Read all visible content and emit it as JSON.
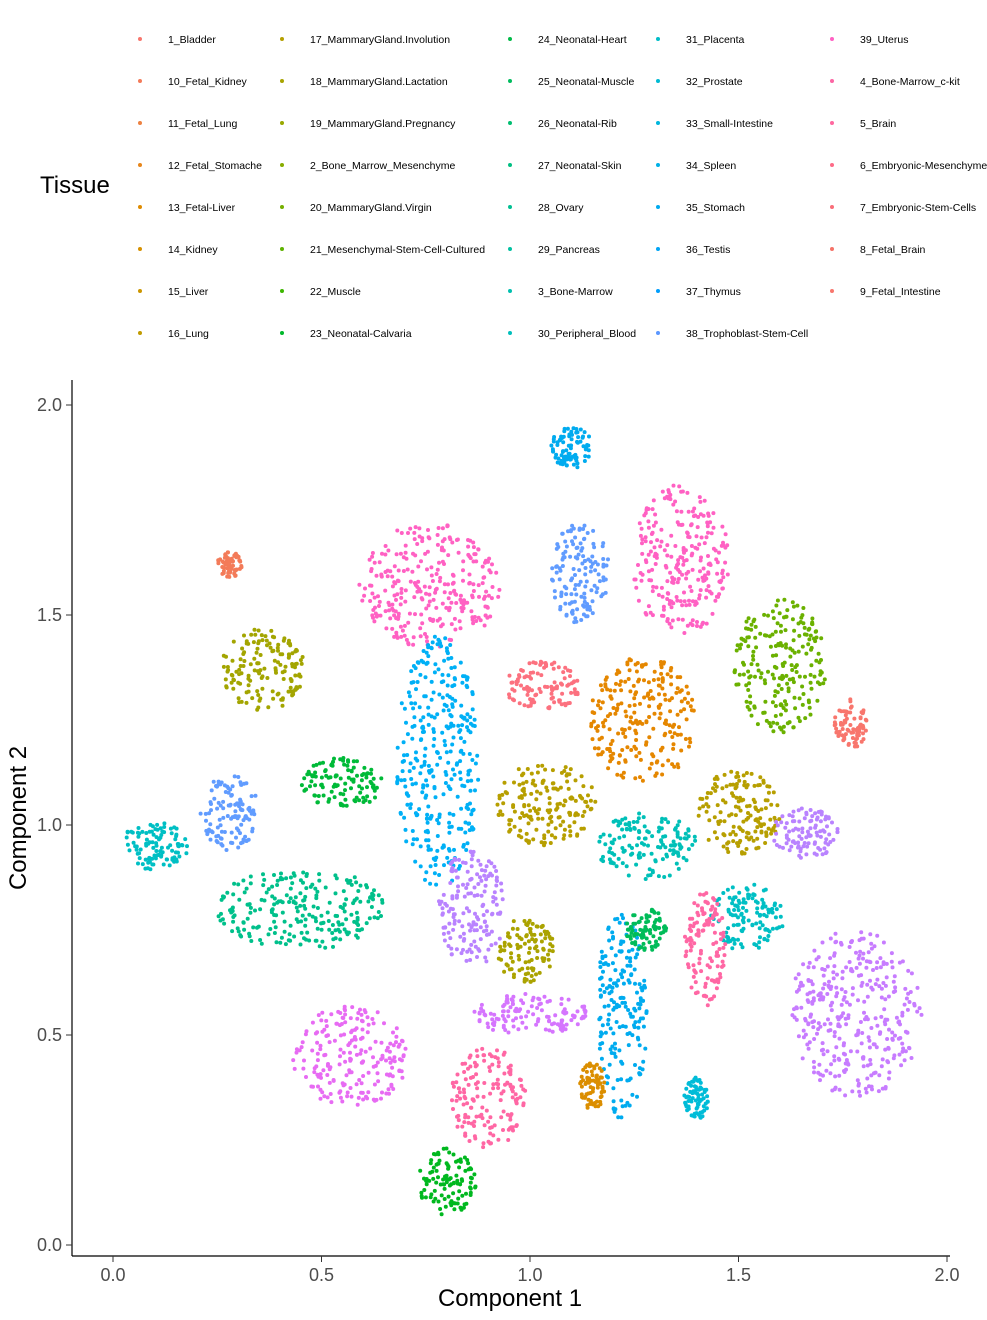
{
  "legend": {
    "title": "Tissue",
    "columns": [
      [
        "1_Bladder",
        "10_Fetal_Kidney",
        "11_Fetal_Lung",
        "12_Fetal_Stomache",
        "13_Fetal-Liver",
        "14_Kidney",
        "15_Liver",
        "16_Lung"
      ],
      [
        "17_MammaryGland.Involution",
        "18_MammaryGland.Lactation",
        "19_MammaryGland.Pregnancy",
        "2_Bone_Marrow_Mesenchyme",
        "20_MammaryGland.Virgin",
        "21_Mesenchymal-Stem-Cell-Cultured",
        "22_Muscle",
        "23_Neonatal-Calvaria"
      ],
      [
        "24_Neonatal-Heart",
        "25_Neonatal-Muscle",
        "26_Neonatal-Rib",
        "27_Neonatal-Skin",
        "28_Ovary",
        "29_Pancreas",
        "3_Bone-Marrow",
        "30_Peripheral_Blood"
      ],
      [
        "31_Placenta",
        "32_Prostate",
        "33_Small-Intestine",
        "34_Spleen",
        "35_Stomach",
        "36_Testis",
        "37_Thymus",
        "38_Trophoblast-Stem-Cell"
      ],
      [
        "39_Uterus",
        "4_Bone-Marrow_c-kit",
        "5_Brain",
        "6_Embryonic-Mesenchyme",
        "7_Embryonic-Stem-Cells",
        "8_Fetal_Brain",
        "9_Fetal_Intestine"
      ]
    ],
    "colors": [
      [
        "#F8766D",
        "#F37B59",
        "#ED8141",
        "#E7861B",
        "#DF8B00",
        "#D69100",
        "#CC9600",
        "#C19B00"
      ],
      [
        "#B5A000",
        "#A8A400",
        "#99A800",
        "#88AC00",
        "#75AF00",
        "#5EB300",
        "#3DB600",
        "#00B82B"
      ],
      [
        "#00BA48",
        "#00BC5E",
        "#00BE71",
        "#00BF82",
        "#00C092",
        "#00C1A1",
        "#00C0AF",
        "#00BFBC"
      ],
      [
        "#00BDC8",
        "#00BAD3",
        "#00B6DD",
        "#00B1E7",
        "#00ABEF",
        "#00A5F6",
        "#009EFC",
        "#5B97FF"
      ],
      [
        "#FF61C3",
        "#FC66A4",
        "#FF689F",
        "#FE6B88",
        "#F96E79",
        "#F57368",
        "#F8766D"
      ]
    ]
  },
  "chart_data": {
    "type": "scatter",
    "title": "",
    "xlabel": "Component 1",
    "ylabel": "Component 2",
    "xlim": [
      -0.1,
      2.0
    ],
    "ylim": [
      -0.02,
      2.05
    ],
    "xticks": [
      "0.0",
      "0.5",
      "1.0",
      "1.5",
      "2.0"
    ],
    "yticks": [
      "0.0",
      "0.5",
      "1.0",
      "1.5",
      "2.0"
    ],
    "grid": false,
    "legend_position": "top",
    "clusters": [
      {
        "series": "30_Peripheral_Blood",
        "color": "#00ABEF",
        "cx": 1.1,
        "cy": 1.9,
        "rx": 0.05,
        "ry": 0.05
      },
      {
        "series": "33_Small-Intestine",
        "color": "#619CFF",
        "cx": 1.12,
        "cy": 1.6,
        "rx": 0.07,
        "ry": 0.12
      },
      {
        "series": "5_Brain",
        "color": "#FF61C3",
        "cx": 0.76,
        "cy": 1.57,
        "rx": 0.17,
        "ry": 0.15
      },
      {
        "series": "5_Brain",
        "color": "#FF61C3",
        "cx": 1.36,
        "cy": 1.63,
        "rx": 0.12,
        "ry": 0.18
      },
      {
        "series": "10_Fetal_Kidney",
        "color": "#F37B59",
        "cx": 0.28,
        "cy": 1.62,
        "rx": 0.03,
        "ry": 0.03
      },
      {
        "series": "15_Liver",
        "color": "#A3A500",
        "cx": 0.36,
        "cy": 1.37,
        "rx": 0.1,
        "ry": 0.1
      },
      {
        "series": "19_MammaryGland.Pregnancy",
        "color": "#6BB100",
        "cx": 1.6,
        "cy": 1.38,
        "rx": 0.11,
        "ry": 0.16
      },
      {
        "series": "7_Embryonic-Stem-Cells",
        "color": "#F8766D",
        "cx": 1.77,
        "cy": 1.24,
        "rx": 0.04,
        "ry": 0.06
      },
      {
        "series": "4_Bone-Marrow_c-kit",
        "color": "#FC717F",
        "cx": 1.03,
        "cy": 1.33,
        "rx": 0.09,
        "ry": 0.06
      },
      {
        "series": "12_Fetal_Stomache",
        "color": "#E58700",
        "cx": 1.27,
        "cy": 1.25,
        "rx": 0.13,
        "ry": 0.15
      },
      {
        "series": "3_Bone-Marrow",
        "color": "#00B0F6",
        "cx": 0.78,
        "cy": 1.15,
        "rx": 0.1,
        "ry": 0.3
      },
      {
        "series": "33_Small-Intestine",
        "color": "#619CFF",
        "cx": 0.28,
        "cy": 1.03,
        "rx": 0.07,
        "ry": 0.09
      },
      {
        "series": "29_Pancreas",
        "color": "#00BFC4",
        "cx": 0.1,
        "cy": 0.95,
        "rx": 0.08,
        "ry": 0.06
      },
      {
        "series": "22_Muscle",
        "color": "#00BA38",
        "cx": 0.55,
        "cy": 1.1,
        "rx": 0.1,
        "ry": 0.06
      },
      {
        "series": "23_Neonatal-Calvaria",
        "color": "#00C08B",
        "cx": 0.45,
        "cy": 0.8,
        "rx": 0.2,
        "ry": 0.1
      },
      {
        "series": "16_Lung",
        "color": "#B79F00",
        "cx": 1.04,
        "cy": 1.05,
        "rx": 0.12,
        "ry": 0.1
      },
      {
        "series": "27_Neonatal-Skin",
        "color": "#00C0B8",
        "cx": 1.28,
        "cy": 0.95,
        "rx": 0.12,
        "ry": 0.08
      },
      {
        "series": "16_Lung",
        "color": "#B79F00",
        "cx": 1.5,
        "cy": 1.03,
        "rx": 0.1,
        "ry": 0.1
      },
      {
        "series": "35_Stomach",
        "color": "#B983FF",
        "cx": 1.66,
        "cy": 0.98,
        "rx": 0.08,
        "ry": 0.06
      },
      {
        "series": "35_Stomach",
        "color": "#B983FF",
        "cx": 0.86,
        "cy": 0.8,
        "rx": 0.08,
        "ry": 0.14
      },
      {
        "series": "29_Pancreas",
        "color": "#00BFC4",
        "cx": 1.52,
        "cy": 0.78,
        "rx": 0.09,
        "ry": 0.08
      },
      {
        "series": "37_Thymus",
        "color": "#C77CFF",
        "cx": 1.78,
        "cy": 0.55,
        "rx": 0.16,
        "ry": 0.2
      },
      {
        "series": "36_Testis",
        "color": "#E76BF3",
        "cx": 0.57,
        "cy": 0.45,
        "rx": 0.14,
        "ry": 0.12
      },
      {
        "series": "39_Uterus",
        "color": "#FF67A4",
        "cx": 0.9,
        "cy": 0.35,
        "rx": 0.09,
        "ry": 0.12
      },
      {
        "series": "20_MammaryGland.Virgin",
        "color": "#00B81F",
        "cx": 0.8,
        "cy": 0.15,
        "rx": 0.07,
        "ry": 0.08
      },
      {
        "series": "30_Peripheral_Blood",
        "color": "#00ABEF",
        "cx": 1.22,
        "cy": 0.55,
        "rx": 0.06,
        "ry": 0.25
      },
      {
        "series": "31_Placenta",
        "color": "#00BCD8",
        "cx": 1.4,
        "cy": 0.35,
        "rx": 0.03,
        "ry": 0.05
      },
      {
        "series": "13_Fetal-Liver",
        "color": "#DB8E00",
        "cx": 1.15,
        "cy": 0.38,
        "rx": 0.03,
        "ry": 0.06
      },
      {
        "series": "21_Mesenchymal-Stem-Cell-Cultured",
        "color": "#00BC59",
        "cx": 1.28,
        "cy": 0.75,
        "rx": 0.05,
        "ry": 0.05
      },
      {
        "series": "38_Trophoblast-Stem-Cell",
        "color": "#D575FE",
        "cx": 1.0,
        "cy": 0.55,
        "rx": 0.14,
        "ry": 0.05
      },
      {
        "series": "18_MammaryGland.Lactation",
        "color": "#ABA300",
        "cx": 0.99,
        "cy": 0.7,
        "rx": 0.07,
        "ry": 0.08
      },
      {
        "series": "39_Uterus",
        "color": "#FF67A4",
        "cx": 1.42,
        "cy": 0.7,
        "rx": 0.05,
        "ry": 0.14
      }
    ]
  }
}
